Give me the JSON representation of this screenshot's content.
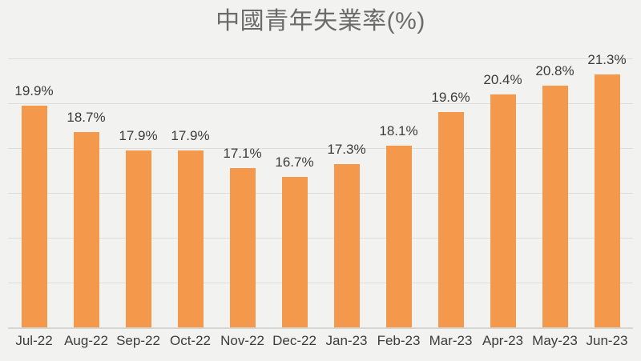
{
  "title": "中國青年失業率(%)",
  "colors": {
    "bar": "#F4994C",
    "background": "#F2F2F0",
    "gridline": "#DEDEDC",
    "axis_line": "#D5D5D2",
    "title_text": "#6B6B6B",
    "label_text": "#3C3C3C"
  },
  "chart_data": {
    "type": "bar",
    "title": "中國青年失業率(%)",
    "categories": [
      "Jul-22",
      "Aug-22",
      "Sep-22",
      "Oct-22",
      "Nov-22",
      "Dec-22",
      "Jan-23",
      "Feb-23",
      "Mar-23",
      "Apr-23",
      "May-23",
      "Jun-23"
    ],
    "values": [
      19.9,
      18.7,
      17.9,
      17.9,
      17.1,
      16.7,
      17.3,
      18.1,
      19.6,
      20.4,
      20.8,
      21.3
    ],
    "data_labels": [
      "19.9%",
      "18.7%",
      "17.9%",
      "17.9%",
      "17.1%",
      "16.7%",
      "17.3%",
      "18.1%",
      "19.6%",
      "20.4%",
      "20.8%",
      "21.3%"
    ],
    "xlabel": "",
    "ylabel": "",
    "ylim": [
      10,
      22
    ],
    "gridline_interval": 2,
    "grid": true,
    "legend": false,
    "axis_tick_labels_visible": false
  }
}
